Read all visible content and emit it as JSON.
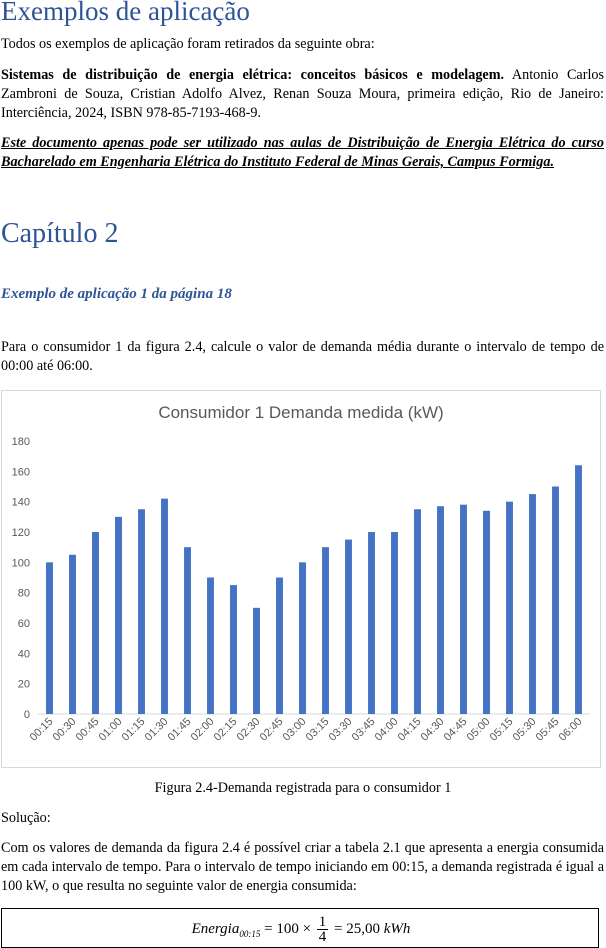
{
  "heading": "Exemplos de aplicação",
  "intro": "Todos os exemplos de aplicação foram retirados da seguinte obra:",
  "reference": {
    "title": "Sistemas de distribuição de energia elétrica: conceitos básicos e modelagem.",
    "rest": " Antonio Carlos Zambroni de Souza, Cristian Adolfo Alvez, Renan Souza Moura, primeira edição, Rio de Janeiro: Interciência, 2024, ISBN 978-85-7193-468-9."
  },
  "notice": "Este documento apenas pode ser utilizado nas aulas de Distribuição de Energia Elétrica do curso Bacharelado em Engenharia Elétrica do Instituto Federal de Minas Gerais, Campus Formiga.",
  "chapter": "Capítulo 2",
  "example_title": "Exemplo de aplicação 1 da página 18",
  "problem": "Para o consumidor 1 da figura 2.4, calcule o valor de demanda média durante o intervalo de tempo de 00:00 até 06:00.",
  "caption": "Figura 2.4-Demanda registrada para o consumidor 1",
  "solution_label": "Solução:",
  "solution_text": "Com os valores de demanda da figura 2.4 é possível criar a tabela 2.1 que apresenta a energia consumida em cada intervalo de tempo. Para o intervalo de tempo iniciando em 00:15, a demanda registrada é igual a 100 kW, o que resulta no seguinte valor de energia consumida:",
  "equation": {
    "lhs": "Energia",
    "lhs_sub": "00:15",
    "middle": "= 100 ×",
    "numerator": "1",
    "denominator": "4",
    "rhs": "= 25,00 ",
    "unit": "kWh"
  },
  "colors": {
    "heading": "#2f5496",
    "bar": "#4472c4"
  },
  "chart_data": {
    "type": "bar",
    "title": "Consumidor 1 Demanda medida (kW)",
    "categories": [
      "00:15",
      "00:30",
      "00:45",
      "01:00",
      "01:15",
      "01:30",
      "01:45",
      "02:00",
      "02:15",
      "02:30",
      "02:45",
      "03:00",
      "03:15",
      "03:30",
      "03:45",
      "04:00",
      "04:15",
      "04:30",
      "04:45",
      "05:00",
      "05:15",
      "05:30",
      "05:45",
      "06:00"
    ],
    "values": [
      100,
      105,
      120,
      130,
      135,
      142,
      110,
      90,
      85,
      70,
      90,
      100,
      110,
      115,
      120,
      120,
      135,
      137,
      138,
      134,
      140,
      145,
      150,
      164
    ],
    "ylim": [
      0,
      180
    ],
    "yticks": [
      0,
      20,
      40,
      60,
      80,
      100,
      120,
      140,
      160,
      180
    ],
    "grid": false,
    "legend": "none"
  }
}
